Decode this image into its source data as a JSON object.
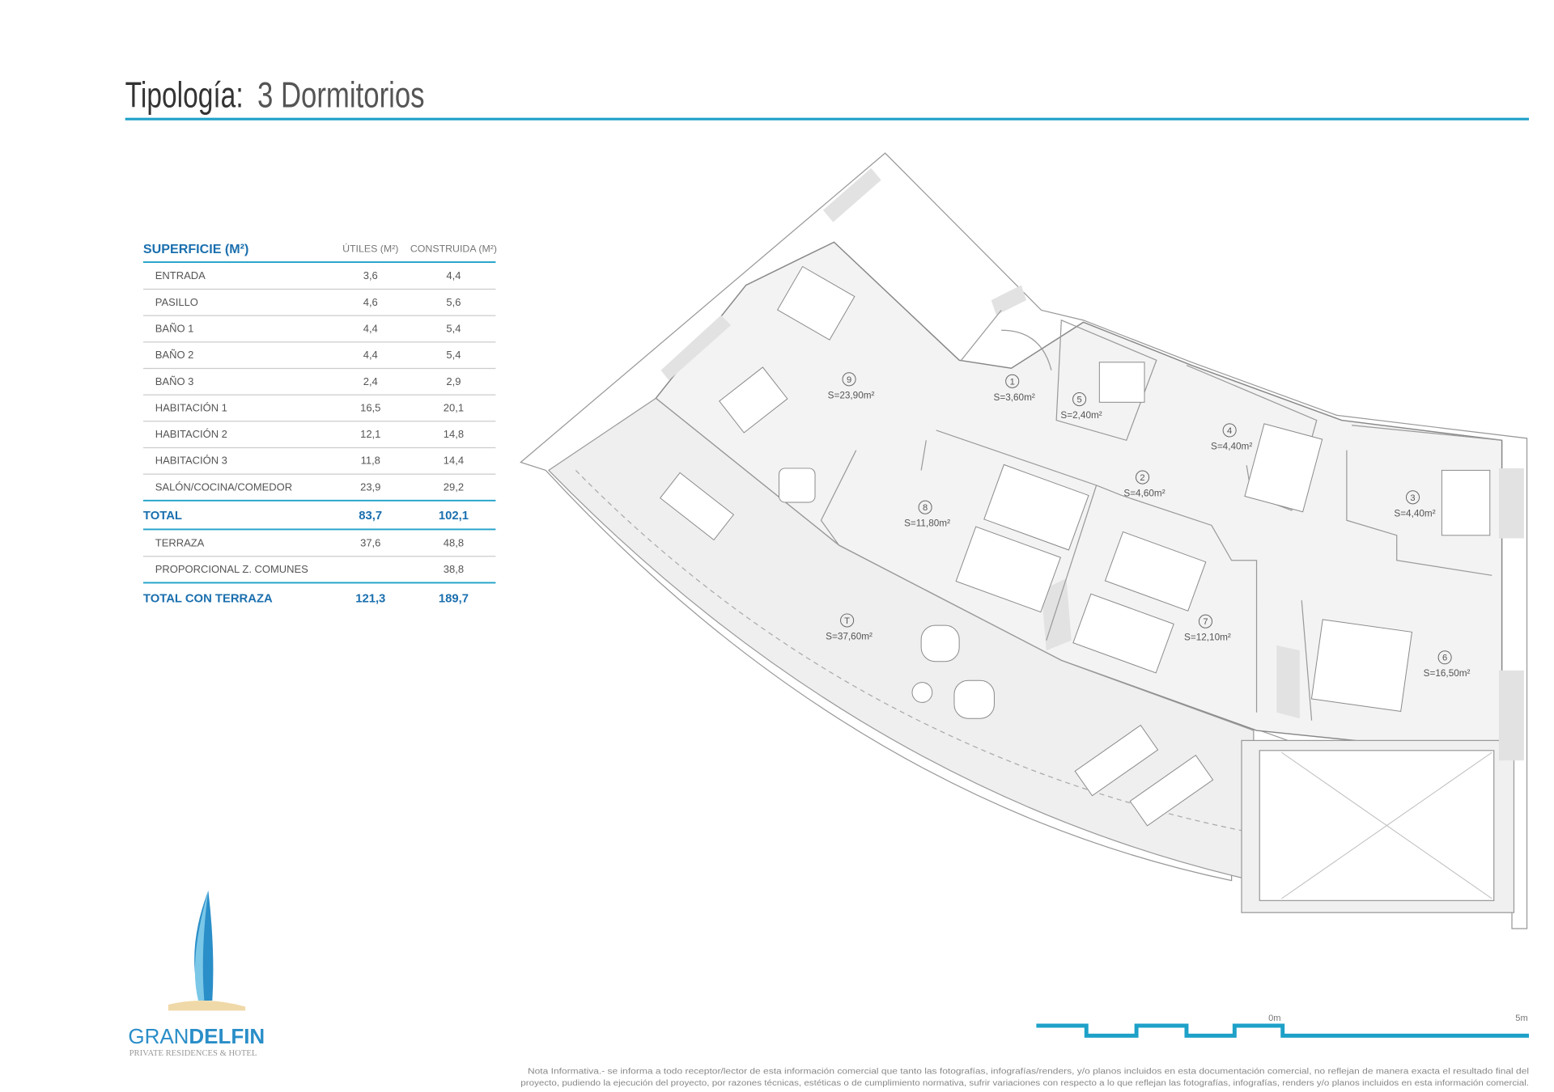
{
  "header": {
    "label": "Tipología:",
    "title": "3 Dormitorios"
  },
  "table": {
    "columns": [
      "SUPERFICIE (M²)",
      "ÚTILES (M²)",
      "CONSTRUIDA (M²)"
    ],
    "rows": [
      {
        "label": "ENTRADA",
        "utiles": "3,6",
        "construida": "4,4"
      },
      {
        "label": "PASILLO",
        "utiles": "4,6",
        "construida": "5,6"
      },
      {
        "label": "BAÑO 1",
        "utiles": "4,4",
        "construida": "5,4"
      },
      {
        "label": "BAÑO 2",
        "utiles": "4,4",
        "construida": "5,4"
      },
      {
        "label": "BAÑO 3",
        "utiles": "2,4",
        "construida": "2,9"
      },
      {
        "label": "HABITACIÓN 1",
        "utiles": "16,5",
        "construida": "20,1"
      },
      {
        "label": "HABITACIÓN 2",
        "utiles": "12,1",
        "construida": "14,8"
      },
      {
        "label": "HABITACIÓN 3",
        "utiles": "11,8",
        "construida": "14,4"
      },
      {
        "label": "SALÓN/COCINA/COMEDOR",
        "utiles": "23,9",
        "construida": "29,2"
      }
    ],
    "total": {
      "label": "TOTAL",
      "utiles": "83,7",
      "construida": "102,1"
    },
    "extra_rows": [
      {
        "label": "TERRAZA",
        "utiles": "37,6",
        "construida": "48,8"
      },
      {
        "label": "PROPORCIONAL Z. COMUNES",
        "construida": "38,8"
      }
    ],
    "grand_total": {
      "label": "TOTAL CON TERRAZA",
      "utiles": "121,3",
      "construida": "189,7"
    }
  },
  "rooms": [
    {
      "number": "9",
      "area": "S=23,90m²"
    },
    {
      "number": "1",
      "area": "S=3,60m²"
    },
    {
      "number": "5",
      "area": "S=2,40m²"
    },
    {
      "number": "4",
      "area": "S=4,40m²"
    },
    {
      "number": "2",
      "area": "S=4,60m²"
    },
    {
      "number": "8",
      "area": "S=11,80m²"
    },
    {
      "number": "3",
      "area": "S=4,40m²"
    },
    {
      "number": "T",
      "area": "S=37,60m²"
    },
    {
      "number": "7",
      "area": "S=12,10m²"
    },
    {
      "number": "6",
      "area": "S=16,50m²"
    }
  ],
  "scale": {
    "start": "0m",
    "end": "5m"
  },
  "logo": {
    "brand_light": "GRAN",
    "brand_bold": "DELFIN",
    "tagline": "PRIVATE RESIDENCES & HOTEL"
  },
  "note": [
    "Nota Informativa.- se informa a todo receptor/lector de esta información comercial que tanto las fotografías, infografías/renders, y/o planos incluidos en esta documentación comercial, no reflejan de manera exacta el resultado final del",
    "proyecto, pudiendo la ejecución del proyecto, por razones técnicas, estéticas o de cumplimiento normativa, sufrir variaciones con respecto a lo que reflejan las fotografías, infografías, renders y/o planos incluidos en esta información comercial."
  ]
}
